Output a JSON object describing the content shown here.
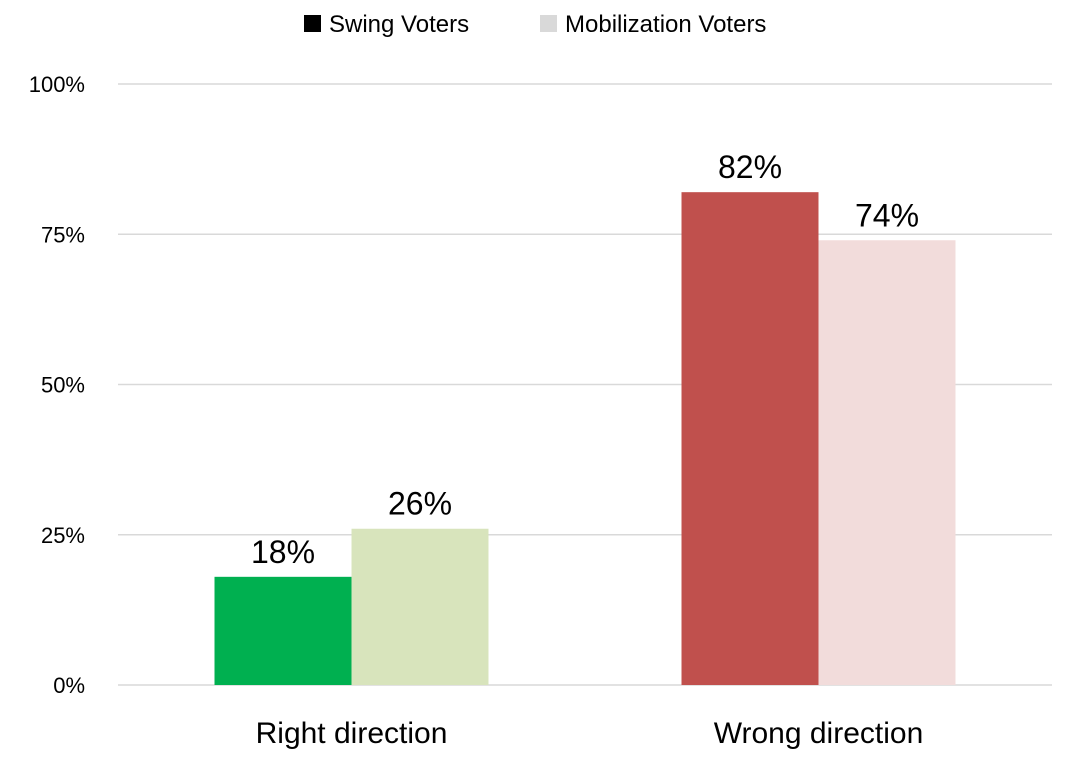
{
  "chart_data": {
    "type": "bar",
    "categories": [
      "Right direction",
      "Wrong direction"
    ],
    "series": [
      {
        "name": "Swing Voters",
        "values": [
          18,
          82
        ],
        "colors": [
          "#00b050",
          "#c0504d"
        ],
        "legend_color": "#000000"
      },
      {
        "name": "Mobilization Voters",
        "values": [
          26,
          74
        ],
        "colors": [
          "#d8e4bc",
          "#f2dcdb"
        ],
        "legend_color": "#d9d9d9"
      }
    ],
    "data_labels": [
      [
        "18%",
        "82%"
      ],
      [
        "26%",
        "74%"
      ]
    ],
    "yticks": [
      0,
      25,
      50,
      75,
      100
    ],
    "ytick_labels": [
      "0%",
      "25%",
      "50%",
      "75%",
      "100%"
    ],
    "ylim": [
      0,
      100
    ],
    "title": "",
    "xlabel": "",
    "ylabel": "",
    "grid": true,
    "legend_position": "top-center"
  }
}
